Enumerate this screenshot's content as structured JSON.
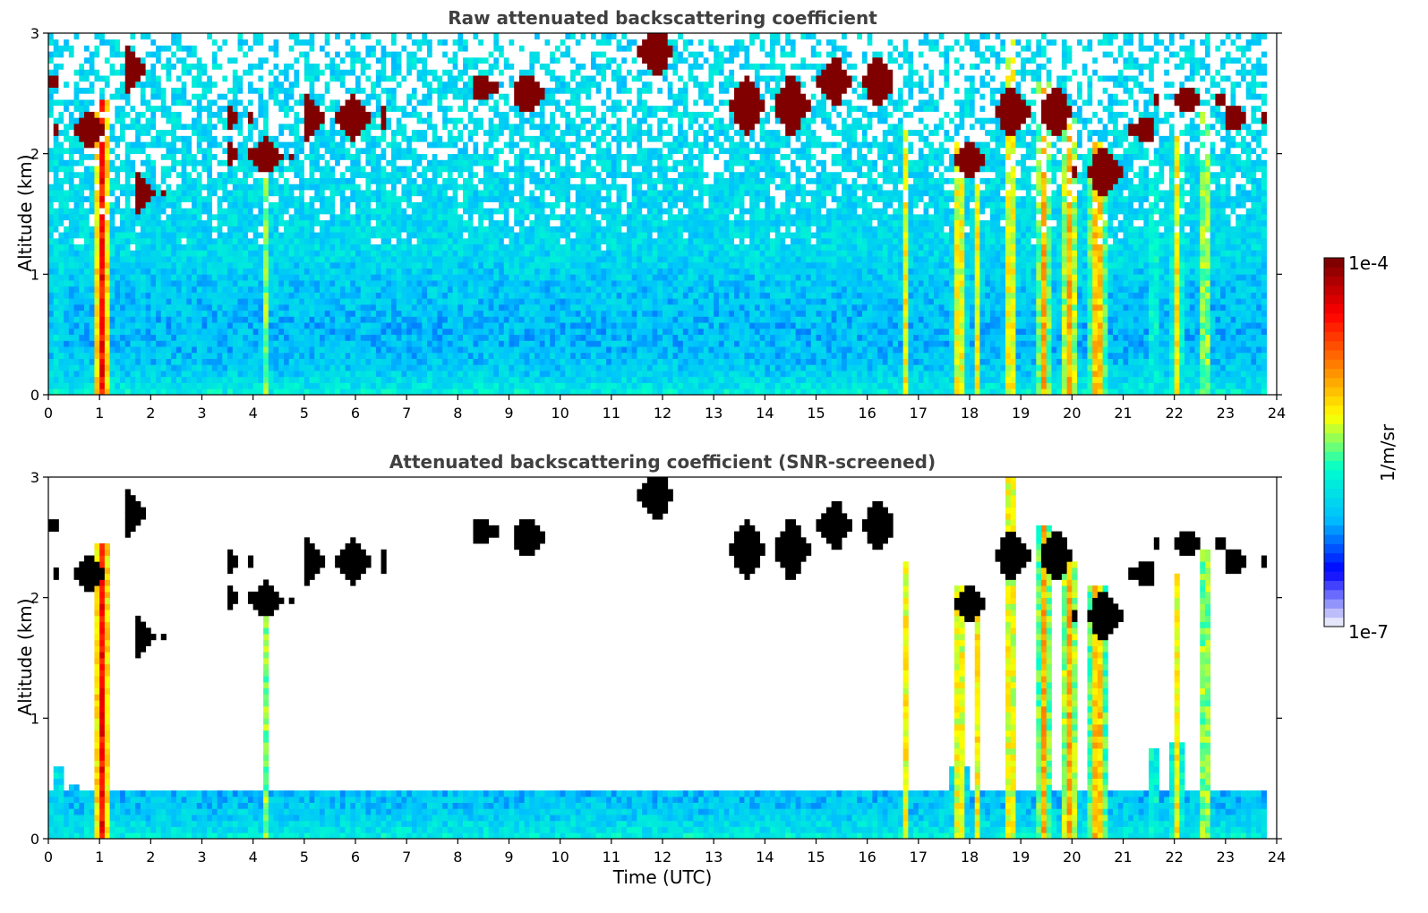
{
  "chart_data": [
    {
      "type": "heatmap",
      "title": "Raw attenuated backscattering coefficient",
      "xlabel": "",
      "ylabel": "Altitude (km)",
      "xlim": [
        0,
        24
      ],
      "ylim": [
        0,
        3
      ],
      "xticks": [
        0,
        1,
        2,
        3,
        4,
        5,
        6,
        7,
        8,
        9,
        10,
        11,
        12,
        13,
        14,
        15,
        16,
        17,
        18,
        19,
        20,
        21,
        22,
        23,
        24
      ],
      "yticks": [
        0,
        1,
        2,
        3
      ],
      "screened": false
    },
    {
      "type": "heatmap",
      "title": "Attenuated backscattering coefficient (SNR-screened)",
      "xlabel": "Time (UTC)",
      "ylabel": "Altitude (km)",
      "xlim": [
        0,
        24
      ],
      "ylim": [
        0,
        3
      ],
      "xticks": [
        0,
        1,
        2,
        3,
        4,
        5,
        6,
        7,
        8,
        9,
        10,
        11,
        12,
        13,
        14,
        15,
        16,
        17,
        18,
        19,
        20,
        21,
        22,
        23,
        24
      ],
      "yticks": [
        0,
        1,
        2,
        3
      ],
      "screened": true
    }
  ],
  "colorbar": {
    "label": "1/m/sr",
    "max_label": "1e-4",
    "min_label": "1e-7",
    "colormap": "jet",
    "colors": [
      "#e6e6fa",
      "#0000ff",
      "#00bfff",
      "#00ffcc",
      "#ffff00",
      "#ff7f00",
      "#ff0000",
      "#800000"
    ]
  },
  "features": {
    "plume": [
      {
        "t": 1.05,
        "w": 0.17,
        "top": 2.45,
        "v": 0.85
      },
      {
        "t": 4.25,
        "w": 0.07,
        "top": 2.0,
        "v": 0.5
      },
      {
        "t": 16.75,
        "w": 0.12,
        "top": 2.3,
        "v": 0.58
      },
      {
        "t": 17.8,
        "w": 0.2,
        "top": 2.1,
        "v": 0.6
      },
      {
        "t": 18.15,
        "w": 0.12,
        "top": 2.0,
        "v": 0.58
      },
      {
        "t": 18.8,
        "w": 0.16,
        "top": 3.0,
        "v": 0.62
      },
      {
        "t": 19.45,
        "w": 0.18,
        "top": 2.6,
        "v": 0.66
      },
      {
        "t": 19.95,
        "w": 0.2,
        "top": 2.3,
        "v": 0.66
      },
      {
        "t": 20.5,
        "w": 0.25,
        "top": 2.1,
        "v": 0.66
      },
      {
        "t": 21.6,
        "w": 0.1,
        "top": 2.0,
        "v": 0.5
      },
      {
        "t": 22.05,
        "w": 0.16,
        "top": 2.2,
        "v": 0.58
      },
      {
        "t": 22.6,
        "w": 0.13,
        "top": 2.4,
        "v": 0.58
      },
      {
        "t": 0.2,
        "w": 0.1,
        "top": 2.3,
        "v": 0.45
      },
      {
        "t": 0.5,
        "w": 0.08,
        "top": 2.0,
        "v": 0.45
      }
    ],
    "cloud": [
      {
        "t0": 0.0,
        "t1": 0.3,
        "y": 2.6,
        "h": 0.12
      },
      {
        "t0": 0.15,
        "t1": 1.05,
        "y": 2.2,
        "h": 0.15
      },
      {
        "t0": 1.5,
        "t1": 2.0,
        "y": 2.7,
        "h": 0.18
      },
      {
        "t0": 1.7,
        "t1": 2.3,
        "y": 1.68,
        "h": 0.16
      },
      {
        "t0": 3.5,
        "t1": 4.0,
        "y": 2.3,
        "h": 0.15
      },
      {
        "t0": 3.5,
        "t1": 4.5,
        "y": 2.0,
        "h": 0.13
      },
      {
        "t0": 4.0,
        "t1": 4.85,
        "y": 1.97,
        "h": 0.14
      },
      {
        "t0": 5.0,
        "t1": 6.6,
        "y": 2.3,
        "h": 0.18
      },
      {
        "t0": 8.3,
        "t1": 9.0,
        "y": 2.55,
        "h": 0.1
      },
      {
        "t0": 9.1,
        "t1": 9.9,
        "y": 2.5,
        "h": 0.15
      },
      {
        "t0": 11.4,
        "t1": 12.2,
        "y": 2.85,
        "h": 0.2
      },
      {
        "t0": 13.2,
        "t1": 15.0,
        "y": 2.4,
        "h": 0.25
      },
      {
        "t0": 15.0,
        "t1": 16.5,
        "y": 2.6,
        "h": 0.2
      },
      {
        "t0": 17.6,
        "t1": 18.5,
        "y": 1.95,
        "h": 0.15
      },
      {
        "t0": 18.5,
        "t1": 20.0,
        "y": 2.35,
        "h": 0.2
      },
      {
        "t0": 20.0,
        "t1": 21.0,
        "y": 1.85,
        "h": 0.22
      },
      {
        "t0": 21.0,
        "t1": 21.6,
        "y": 2.2,
        "h": 0.1
      },
      {
        "t0": 21.6,
        "t1": 23.0,
        "y": 2.45,
        "h": 0.1
      },
      {
        "t0": 23.0,
        "t1": 23.8,
        "y": 2.3,
        "h": 0.1
      }
    ]
  }
}
